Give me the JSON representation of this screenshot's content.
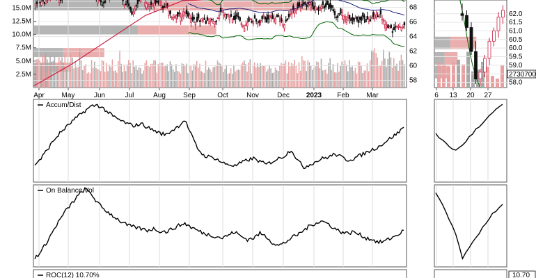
{
  "chart_data": [
    {
      "type": "candlestick",
      "panel": "price-main",
      "x_ticks": [
        "Apr",
        "May",
        "Jun",
        "Jul",
        "Aug",
        "Sep",
        "Oct",
        "Nov",
        "Dec",
        "2023",
        "Feb",
        "Mar"
      ],
      "price_ticks": [
        58,
        60,
        62,
        64,
        66,
        68
      ],
      "volume_ticks": [
        "2.5M",
        "5.0M",
        "7.5M",
        "10.0M",
        "12.5M",
        "15.0M"
      ],
      "ylim": [
        57.0,
        69.0
      ],
      "volume_ylim": [
        0,
        16500000
      ],
      "volume_by_price": [
        {
          "price": 68.2,
          "up": 0.43,
          "down": 0.32
        },
        {
          "price": 64.9,
          "up": 0.21,
          "down": 0.28
        },
        {
          "price": 61.8,
          "up": 0.11,
          "down": 0.08
        },
        {
          "price": 59.8,
          "up": 0.05,
          "down": 0.05
        },
        {
          "price": 58.6,
          "up": 0.02,
          "down": 0.03
        },
        {
          "price": 57.6,
          "up": 0.01,
          "down": 0.03
        }
      ],
      "moving_average": [
        {
          "x": 0.0,
          "y": 41.5
        },
        {
          "x": 0.1,
          "y": 48.0
        },
        {
          "x": 0.2,
          "y": 55.5
        },
        {
          "x": 0.3,
          "y": 63.0
        },
        {
          "x": 0.4,
          "y": 67.5
        },
        {
          "x": 0.45,
          "y": 68.2
        }
      ],
      "colors": {
        "up": "#e8a0a0",
        "down": "#a0a0a0",
        "candle_up": "#cc2244",
        "candle_down": "#000000",
        "bollinger": "#006400",
        "ma": "#1a237e",
        "red_line": "#cc2244"
      }
    },
    {
      "type": "line",
      "panel": "accum-dist",
      "label": "Accum/Dist",
      "series": [
        {
          "values": [
            0.2,
            0.28,
            0.4,
            0.52,
            0.62,
            0.7,
            0.78,
            0.85,
            0.92,
            0.98,
            1.0,
            0.95,
            0.88,
            0.82,
            0.78,
            0.74,
            0.72,
            0.75,
            0.7,
            0.66,
            0.62,
            0.6,
            0.66,
            0.72,
            0.8,
            0.6,
            0.42,
            0.32,
            0.3,
            0.28,
            0.22,
            0.2,
            0.18,
            0.22,
            0.26,
            0.28,
            0.24,
            0.2,
            0.24,
            0.28,
            0.32,
            0.4,
            0.26,
            0.16,
            0.2,
            0.24,
            0.28,
            0.3,
            0.34,
            0.3,
            0.26,
            0.28,
            0.32,
            0.36,
            0.4,
            0.44,
            0.5,
            0.56,
            0.62,
            0.7
          ]
        }
      ],
      "mini_values": [
        0.6,
        0.52,
        0.44,
        0.38,
        0.46,
        0.56,
        0.66,
        0.74,
        0.84,
        0.92,
        1.0
      ]
    },
    {
      "type": "line",
      "panel": "obv",
      "label": "On Balance Vol",
      "series": [
        {
          "values": [
            0.1,
            0.18,
            0.32,
            0.46,
            0.6,
            0.72,
            0.82,
            0.92,
            1.0,
            0.94,
            0.82,
            0.74,
            0.68,
            0.62,
            0.56,
            0.52,
            0.5,
            0.48,
            0.46,
            0.48,
            0.45,
            0.44,
            0.48,
            0.52,
            0.55,
            0.5,
            0.46,
            0.42,
            0.4,
            0.38,
            0.36,
            0.4,
            0.44,
            0.38,
            0.34,
            0.36,
            0.42,
            0.38,
            0.3,
            0.26,
            0.3,
            0.36,
            0.4,
            0.46,
            0.52,
            0.56,
            0.58,
            0.54,
            0.48,
            0.44,
            0.42,
            0.44,
            0.4,
            0.36,
            0.34,
            0.3,
            0.32,
            0.36,
            0.4,
            0.46
          ]
        }
      ],
      "mini_values": [
        0.95,
        0.8,
        0.6,
        0.4,
        0.1,
        0.22,
        0.36,
        0.5,
        0.62,
        0.72,
        0.8
      ]
    },
    {
      "type": "line",
      "panel": "roc",
      "label": "ROC(12) 10.70%",
      "marker_value": "10.70"
    },
    {
      "type": "candlestick",
      "panel": "price-mini",
      "x_ticks": [
        "6",
        "13",
        "20",
        "27"
      ],
      "price_ticks": [
        "62.0",
        "61.5",
        "61.0",
        "60.5",
        "60.0",
        "59.5",
        "59.0",
        "58.5",
        "58.0"
      ],
      "ylim": [
        57.7,
        62.8
      ],
      "current_price_label": "2730700",
      "candles": [
        {
          "o": 62.0,
          "h": 62.6,
          "l": 61.6,
          "c": 61.9
        },
        {
          "o": 61.9,
          "h": 62.2,
          "l": 61.0,
          "c": 61.2
        },
        {
          "o": 61.2,
          "h": 61.5,
          "l": 59.6,
          "c": 59.8
        },
        {
          "o": 59.8,
          "h": 60.4,
          "l": 57.9,
          "c": 58.2
        },
        {
          "o": 58.2,
          "h": 58.8,
          "l": 57.8,
          "c": 58.6
        },
        {
          "o": 58.6,
          "h": 59.6,
          "l": 58.3,
          "c": 59.4
        },
        {
          "o": 59.4,
          "h": 60.6,
          "l": 59.0,
          "c": 60.4
        },
        {
          "o": 60.4,
          "h": 61.2,
          "l": 60.1,
          "c": 61.0
        },
        {
          "o": 61.0,
          "h": 62.1,
          "l": 60.6,
          "c": 61.8
        },
        {
          "o": 61.8,
          "h": 62.5,
          "l": 61.4,
          "c": 62.2
        }
      ]
    }
  ]
}
